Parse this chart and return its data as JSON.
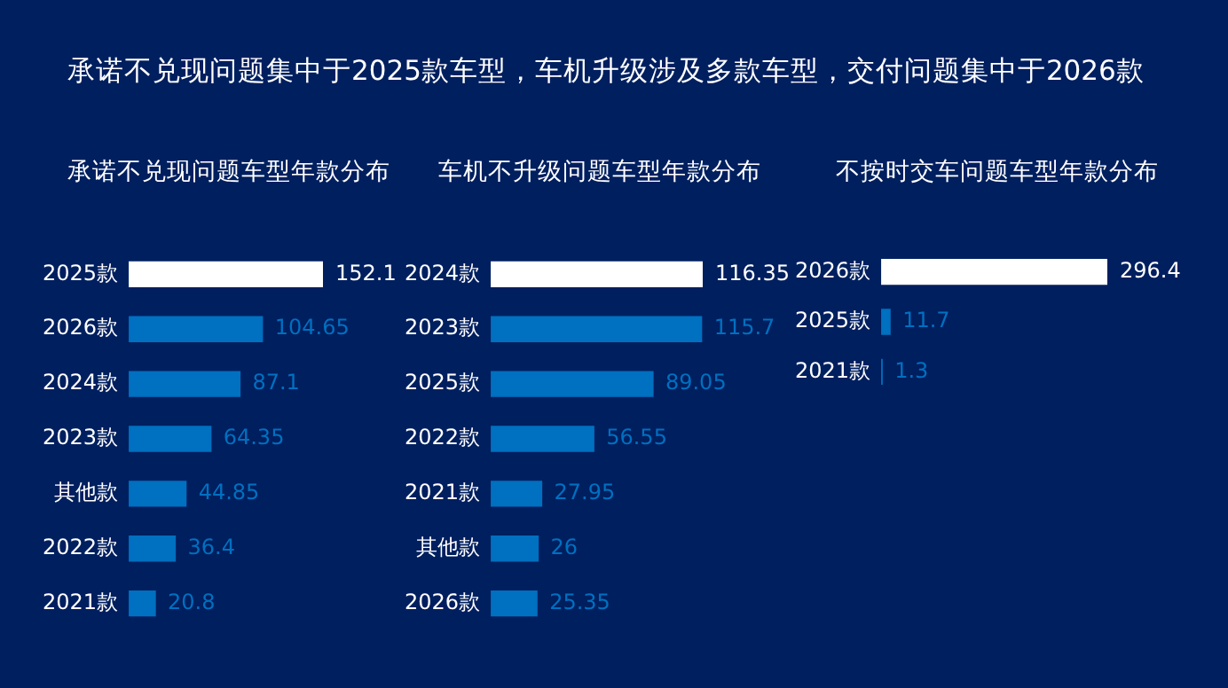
{
  "chart_data": [
    {
      "type": "bar",
      "orientation": "horizontal",
      "title": "承诺不兑现问题车型年款分布",
      "annotations": [
        "承诺不兑现问题集中于2025款车型，车机升级涉及多款车型，交付问题集中于2026款"
      ],
      "categories": [
        "2025款",
        "2026款",
        "2024款",
        "2023款",
        "其他款",
        "2022款",
        "2021款"
      ],
      "values": [
        152.1,
        104.65,
        87.1,
        64.35,
        44.85,
        36.4,
        20.8
      ],
      "colors": [
        "#ffffff",
        "#0070c0",
        "#0070c0",
        "#0070c0",
        "#0070c0",
        "#0070c0",
        "#0070c0"
      ],
      "data_labels": true,
      "grid": false,
      "legend": false
    },
    {
      "type": "bar",
      "orientation": "horizontal",
      "title": "车机不升级问题车型年款分布",
      "categories": [
        "2024款",
        "2023款",
        "2025款",
        "2022款",
        "2021款",
        "其他款",
        "2026款"
      ],
      "values": [
        116.35,
        115.7,
        89.05,
        56.55,
        27.95,
        26,
        25.35
      ],
      "colors": [
        "#ffffff",
        "#0070c0",
        "#0070c0",
        "#0070c0",
        "#0070c0",
        "#0070c0",
        "#0070c0"
      ],
      "data_labels": true,
      "grid": false,
      "legend": false
    },
    {
      "type": "bar",
      "orientation": "horizontal",
      "title": "不按时交车问题车型年款分布",
      "categories": [
        "2026款",
        "2025款",
        "2021款"
      ],
      "values": [
        296.4,
        11.7,
        1.3
      ],
      "colors": [
        "#ffffff",
        "#0070c0",
        "#0070c0"
      ],
      "data_labels": true,
      "grid": false,
      "legend": false
    }
  ]
}
